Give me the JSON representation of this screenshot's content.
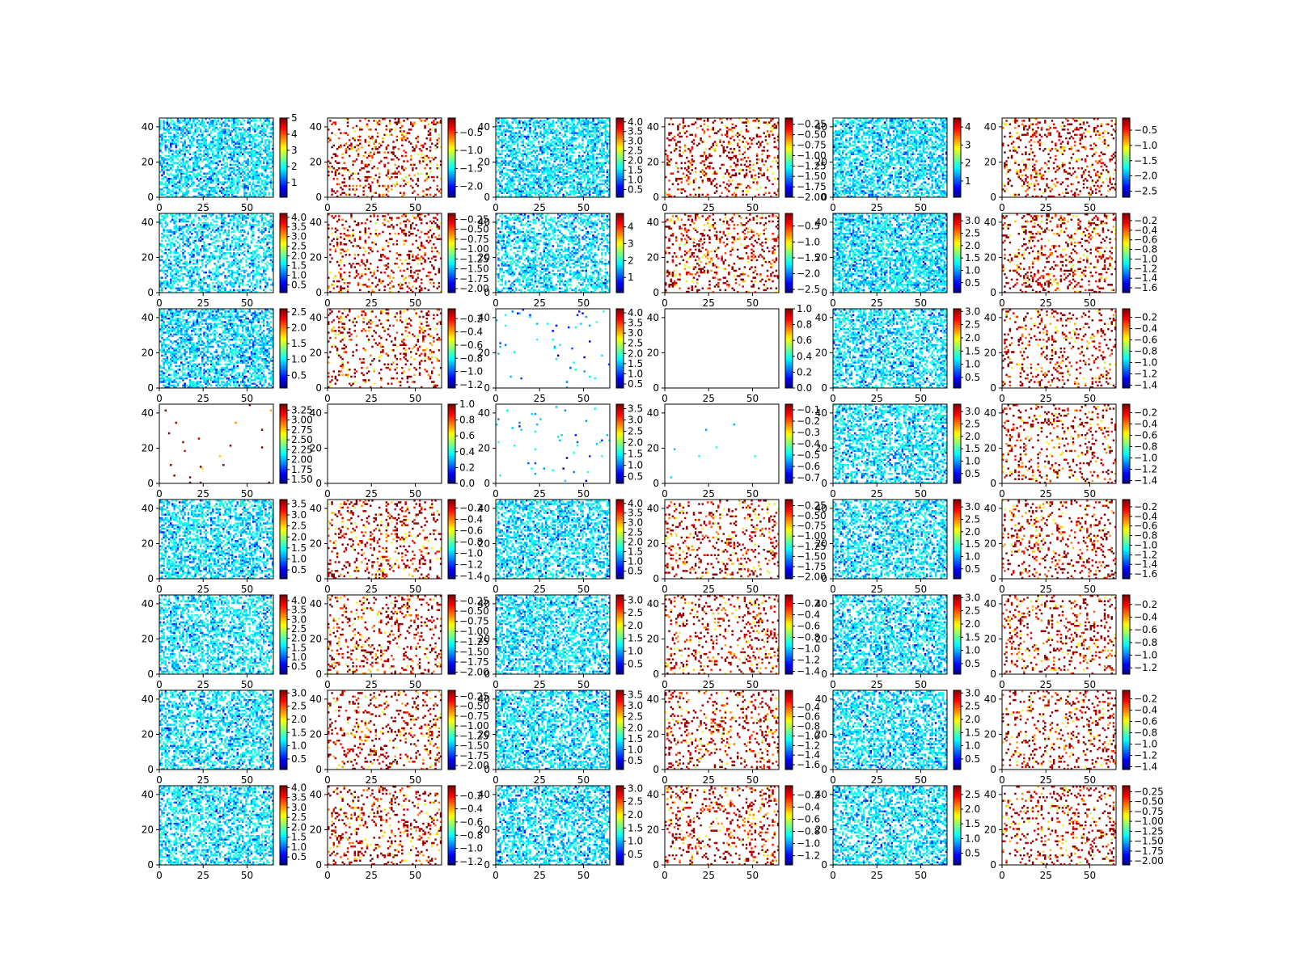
{
  "chart_data": {
    "type": "heatmap",
    "layout": {
      "rows": 8,
      "cols": 6
    },
    "colormap": "jet",
    "missing_color": "#ffffff",
    "shared_x_ticks": [
      "0",
      "25",
      "50"
    ],
    "shared_y_ticks": [
      "0",
      "20",
      "40"
    ],
    "xlim": [
      0,
      65
    ],
    "ylim": [
      0,
      45
    ],
    "grid": false,
    "panels": [
      {
        "id": "r1c1",
        "density": 0.55,
        "clim": [
          0.1,
          5
        ],
        "bias": 0.15,
        "colorbar_ticks": [
          "1",
          "2",
          "3",
          "4",
          "5"
        ]
      },
      {
        "id": "r1c2",
        "density": 0.18,
        "clim": [
          -2.3,
          -0.1
        ],
        "bias": 0.85,
        "colorbar_ticks": [
          "−2.0",
          "−1.5",
          "−1.0",
          "−0.5"
        ]
      },
      {
        "id": "r1c3",
        "density": 0.55,
        "clim": [
          0.1,
          4.2
        ],
        "bias": 0.15,
        "colorbar_ticks": [
          "0.5",
          "1.0",
          "1.5",
          "2.0",
          "2.5",
          "3.0",
          "3.5",
          "4.0"
        ]
      },
      {
        "id": "r1c4",
        "density": 0.18,
        "clim": [
          -2.0,
          -0.1
        ],
        "bias": 0.85,
        "colorbar_ticks": [
          "−2.00",
          "−1.75",
          "−1.50",
          "−1.25",
          "−1.00",
          "−0.75",
          "−0.50",
          "−0.25"
        ]
      },
      {
        "id": "r1c5",
        "density": 0.55,
        "clim": [
          0.1,
          4.5
        ],
        "bias": 0.15,
        "colorbar_ticks": [
          "1",
          "2",
          "3",
          "4"
        ]
      },
      {
        "id": "r1c6",
        "density": 0.18,
        "clim": [
          -2.7,
          -0.1
        ],
        "bias": 0.85,
        "colorbar_ticks": [
          "−2.5",
          "−2.0",
          "−1.5",
          "−1.0",
          "−0.5"
        ]
      },
      {
        "id": "r2c1",
        "density": 0.45,
        "clim": [
          0.1,
          4.2
        ],
        "bias": 0.15,
        "colorbar_ticks": [
          "0.5",
          "1.0",
          "1.5",
          "2.0",
          "2.5",
          "3.0",
          "3.5",
          "4.0"
        ]
      },
      {
        "id": "r2c2",
        "density": 0.18,
        "clim": [
          -2.1,
          -0.1
        ],
        "bias": 0.85,
        "colorbar_ticks": [
          "−2.00",
          "−1.75",
          "−1.50",
          "−1.25",
          "−1.00",
          "−0.75",
          "−0.50",
          "−0.25"
        ]
      },
      {
        "id": "r2c3",
        "density": 0.45,
        "clim": [
          0.1,
          4.8
        ],
        "bias": 0.15,
        "colorbar_ticks": [
          "1",
          "2",
          "3",
          "4"
        ]
      },
      {
        "id": "r2c4",
        "density": 0.18,
        "clim": [
          -2.6,
          -0.1
        ],
        "bias": 0.85,
        "colorbar_ticks": [
          "−2.5",
          "−2.0",
          "−1.5",
          "−1.0",
          "−0.5"
        ]
      },
      {
        "id": "r2c5",
        "density": 0.6,
        "clim": [
          0.1,
          3.3
        ],
        "bias": 0.15,
        "colorbar_ticks": [
          "0.5",
          "1.0",
          "1.5",
          "2.0",
          "2.5",
          "3.0"
        ]
      },
      {
        "id": "r2c6",
        "density": 0.18,
        "clim": [
          -1.7,
          -0.05
        ],
        "bias": 0.85,
        "colorbar_ticks": [
          "−1.6",
          "−1.4",
          "−1.2",
          "−1.0",
          "−0.8",
          "−0.6",
          "−0.4",
          "−0.2"
        ]
      },
      {
        "id": "r3c1",
        "density": 0.55,
        "clim": [
          0.1,
          2.6
        ],
        "bias": 0.2,
        "colorbar_ticks": [
          "0.5",
          "1.0",
          "1.5",
          "2.0",
          "2.5"
        ]
      },
      {
        "id": "r3c2",
        "density": 0.15,
        "clim": [
          -1.25,
          -0.05
        ],
        "bias": 0.85,
        "colorbar_ticks": [
          "−1.2",
          "−1.0",
          "−0.8",
          "−0.6",
          "−0.4",
          "−0.2"
        ]
      },
      {
        "id": "r3c3",
        "density": 0.02,
        "clim": [
          0.3,
          4.2
        ],
        "bias": 0.3,
        "colorbar_ticks": [
          "0.5",
          "1.0",
          "1.5",
          "2.0",
          "2.5",
          "3.0",
          "3.5",
          "4.0"
        ]
      },
      {
        "id": "r3c4",
        "density": 0.0,
        "clim": [
          0,
          1
        ],
        "bias": 0.5,
        "colorbar_ticks": [
          "0.0",
          "0.2",
          "0.4",
          "0.6",
          "0.8",
          "1.0"
        ]
      },
      {
        "id": "r3c5",
        "density": 0.5,
        "clim": [
          0.1,
          3.1
        ],
        "bias": 0.15,
        "colorbar_ticks": [
          "0.5",
          "1.0",
          "1.5",
          "2.0",
          "2.5",
          "3.0"
        ]
      },
      {
        "id": "r3c6",
        "density": 0.15,
        "clim": [
          -1.45,
          -0.05
        ],
        "bias": 0.85,
        "colorbar_ticks": [
          "−1.4",
          "−1.2",
          "−1.0",
          "−0.8",
          "−0.6",
          "−0.4",
          "−0.2"
        ]
      },
      {
        "id": "r4c1",
        "density": 0.01,
        "clim": [
          1.4,
          3.4
        ],
        "bias": 0.8,
        "colorbar_ticks": [
          "1.50",
          "1.75",
          "2.00",
          "2.25",
          "2.50",
          "2.75",
          "3.00",
          "3.25"
        ]
      },
      {
        "id": "r4c2",
        "density": 0.0,
        "clim": [
          0,
          1
        ],
        "bias": 0.5,
        "colorbar_ticks": [
          "0.0",
          "0.2",
          "0.4",
          "0.6",
          "0.8",
          "1.0"
        ]
      },
      {
        "id": "r4c3",
        "density": 0.02,
        "clim": [
          0.2,
          3.7
        ],
        "bias": 0.3,
        "colorbar_ticks": [
          "0.5",
          "1.0",
          "1.5",
          "2.0",
          "2.5",
          "3.0",
          "3.5"
        ]
      },
      {
        "id": "r4c4",
        "density": 0.002,
        "clim": [
          -0.75,
          -0.05
        ],
        "bias": 0.1,
        "colorbar_ticks": [
          "−0.7",
          "−0.6",
          "−0.5",
          "−0.4",
          "−0.3",
          "−0.2",
          "−0.1"
        ]
      },
      {
        "id": "r4c5",
        "density": 0.5,
        "clim": [
          0.1,
          3.3
        ],
        "bias": 0.15,
        "colorbar_ticks": [
          "0.5",
          "1.0",
          "1.5",
          "2.0",
          "2.5",
          "3.0"
        ]
      },
      {
        "id": "r4c6",
        "density": 0.15,
        "clim": [
          -1.45,
          -0.05
        ],
        "bias": 0.85,
        "colorbar_ticks": [
          "−1.4",
          "−1.2",
          "−1.0",
          "−0.8",
          "−0.6",
          "−0.4",
          "−0.2"
        ]
      },
      {
        "id": "r5c1",
        "density": 0.5,
        "clim": [
          0.1,
          3.7
        ],
        "bias": 0.15,
        "colorbar_ticks": [
          "0.5",
          "1.0",
          "1.5",
          "2.0",
          "2.5",
          "3.0",
          "3.5"
        ]
      },
      {
        "id": "r5c2",
        "density": 0.15,
        "clim": [
          -1.45,
          -0.05
        ],
        "bias": 0.85,
        "colorbar_ticks": [
          "−1.4",
          "−1.2",
          "−1.0",
          "−0.8",
          "−0.6",
          "−0.4",
          "−0.2"
        ]
      },
      {
        "id": "r5c3",
        "density": 0.5,
        "clim": [
          0.1,
          4.2
        ],
        "bias": 0.15,
        "colorbar_ticks": [
          "0.5",
          "1.0",
          "1.5",
          "2.0",
          "2.5",
          "3.0",
          "3.5",
          "4.0"
        ]
      },
      {
        "id": "r5c4",
        "density": 0.15,
        "clim": [
          -2.05,
          -0.1
        ],
        "bias": 0.85,
        "colorbar_ticks": [
          "−2.00",
          "−1.75",
          "−1.50",
          "−1.25",
          "−1.00",
          "−0.75",
          "−0.50",
          "−0.25"
        ]
      },
      {
        "id": "r5c5",
        "density": 0.5,
        "clim": [
          0.1,
          3.3
        ],
        "bias": 0.15,
        "colorbar_ticks": [
          "0.5",
          "1.0",
          "1.5",
          "2.0",
          "2.5",
          "3.0"
        ]
      },
      {
        "id": "r5c6",
        "density": 0.15,
        "clim": [
          -1.7,
          -0.05
        ],
        "bias": 0.85,
        "colorbar_ticks": [
          "−1.6",
          "−1.4",
          "−1.2",
          "−1.0",
          "−0.8",
          "−0.6",
          "−0.4",
          "−0.2"
        ]
      },
      {
        "id": "r6c1",
        "density": 0.5,
        "clim": [
          0.1,
          4.3
        ],
        "bias": 0.12,
        "colorbar_ticks": [
          "0.5",
          "1.0",
          "1.5",
          "2.0",
          "2.5",
          "3.0",
          "3.5",
          "4.0"
        ]
      },
      {
        "id": "r6c2",
        "density": 0.15,
        "clim": [
          -2.05,
          -0.1
        ],
        "bias": 0.85,
        "colorbar_ticks": [
          "−2.00",
          "−1.75",
          "−1.50",
          "−1.25",
          "−1.00",
          "−0.75",
          "−0.50",
          "−0.25"
        ]
      },
      {
        "id": "r6c3",
        "density": 0.5,
        "clim": [
          0.1,
          3.2
        ],
        "bias": 0.15,
        "colorbar_ticks": [
          "0.5",
          "1.0",
          "1.5",
          "2.0",
          "2.5",
          "3.0"
        ]
      },
      {
        "id": "r6c4",
        "density": 0.15,
        "clim": [
          -1.45,
          -0.05
        ],
        "bias": 0.85,
        "colorbar_ticks": [
          "−1.4",
          "−1.2",
          "−1.0",
          "−0.8",
          "−0.6",
          "−0.4",
          "−0.2"
        ]
      },
      {
        "id": "r6c5",
        "density": 0.5,
        "clim": [
          0.1,
          3.1
        ],
        "bias": 0.15,
        "colorbar_ticks": [
          "0.5",
          "1.0",
          "1.5",
          "2.0",
          "2.5",
          "3.0"
        ]
      },
      {
        "id": "r6c6",
        "density": 0.15,
        "clim": [
          -1.3,
          -0.05
        ],
        "bias": 0.85,
        "colorbar_ticks": [
          "−1.2",
          "−1.0",
          "−0.8",
          "−0.6",
          "−0.4",
          "−0.2"
        ]
      },
      {
        "id": "r7c1",
        "density": 0.5,
        "clim": [
          0.1,
          3.1
        ],
        "bias": 0.15,
        "colorbar_ticks": [
          "0.5",
          "1.0",
          "1.5",
          "2.0",
          "2.5",
          "3.0"
        ]
      },
      {
        "id": "r7c2",
        "density": 0.15,
        "clim": [
          -2.1,
          -0.1
        ],
        "bias": 0.85,
        "colorbar_ticks": [
          "−2.00",
          "−1.75",
          "−1.50",
          "−1.25",
          "−1.00",
          "−0.75",
          "−0.50",
          "−0.25"
        ]
      },
      {
        "id": "r7c3",
        "density": 0.5,
        "clim": [
          0.1,
          3.7
        ],
        "bias": 0.15,
        "colorbar_ticks": [
          "0.5",
          "1.0",
          "1.5",
          "2.0",
          "2.5",
          "3.0",
          "3.5"
        ]
      },
      {
        "id": "r7c4",
        "density": 0.15,
        "clim": [
          -1.7,
          -0.05
        ],
        "bias": 0.85,
        "colorbar_ticks": [
          "−1.6",
          "−1.4",
          "−1.2",
          "−1.0",
          "−0.8",
          "−0.6",
          "−0.4"
        ]
      },
      {
        "id": "r7c5",
        "density": 0.5,
        "clim": [
          0.1,
          3.1
        ],
        "bias": 0.15,
        "colorbar_ticks": [
          "0.5",
          "1.0",
          "1.5",
          "2.0",
          "2.5",
          "3.0"
        ]
      },
      {
        "id": "r7c6",
        "density": 0.15,
        "clim": [
          -1.45,
          -0.05
        ],
        "bias": 0.85,
        "colorbar_ticks": [
          "−1.4",
          "−1.2",
          "−1.0",
          "−0.8",
          "−0.6",
          "−0.4",
          "−0.2"
        ]
      },
      {
        "id": "r8c1",
        "density": 0.5,
        "clim": [
          0.1,
          4.1
        ],
        "bias": 0.12,
        "colorbar_ticks": [
          "0.5",
          "1.0",
          "1.5",
          "2.0",
          "2.5",
          "3.0",
          "3.5",
          "4.0"
        ]
      },
      {
        "id": "r8c2",
        "density": 0.15,
        "clim": [
          -1.25,
          -0.05
        ],
        "bias": 0.85,
        "colorbar_ticks": [
          "−1.2",
          "−1.0",
          "−0.8",
          "−0.6",
          "−0.4",
          "−0.2"
        ]
      },
      {
        "id": "r8c3",
        "density": 0.5,
        "clim": [
          0.1,
          3.1
        ],
        "bias": 0.15,
        "colorbar_ticks": [
          "0.5",
          "1.0",
          "1.5",
          "2.0",
          "2.5",
          "3.0"
        ]
      },
      {
        "id": "r8c4",
        "density": 0.15,
        "clim": [
          -1.35,
          -0.05
        ],
        "bias": 0.85,
        "colorbar_ticks": [
          "−1.2",
          "−1.0",
          "−0.8",
          "−0.6",
          "−0.4",
          "−0.2"
        ]
      },
      {
        "id": "r8c5",
        "density": 0.5,
        "clim": [
          0.1,
          2.8
        ],
        "bias": 0.15,
        "colorbar_ticks": [
          "0.5",
          "1.0",
          "1.5",
          "2.0",
          "2.5"
        ]
      },
      {
        "id": "r8c6",
        "density": 0.15,
        "clim": [
          -2.1,
          -0.1
        ],
        "bias": 0.85,
        "colorbar_ticks": [
          "−2.00",
          "−1.75",
          "−1.50",
          "−1.25",
          "−1.00",
          "−0.75",
          "−0.50",
          "−0.25"
        ]
      }
    ]
  }
}
